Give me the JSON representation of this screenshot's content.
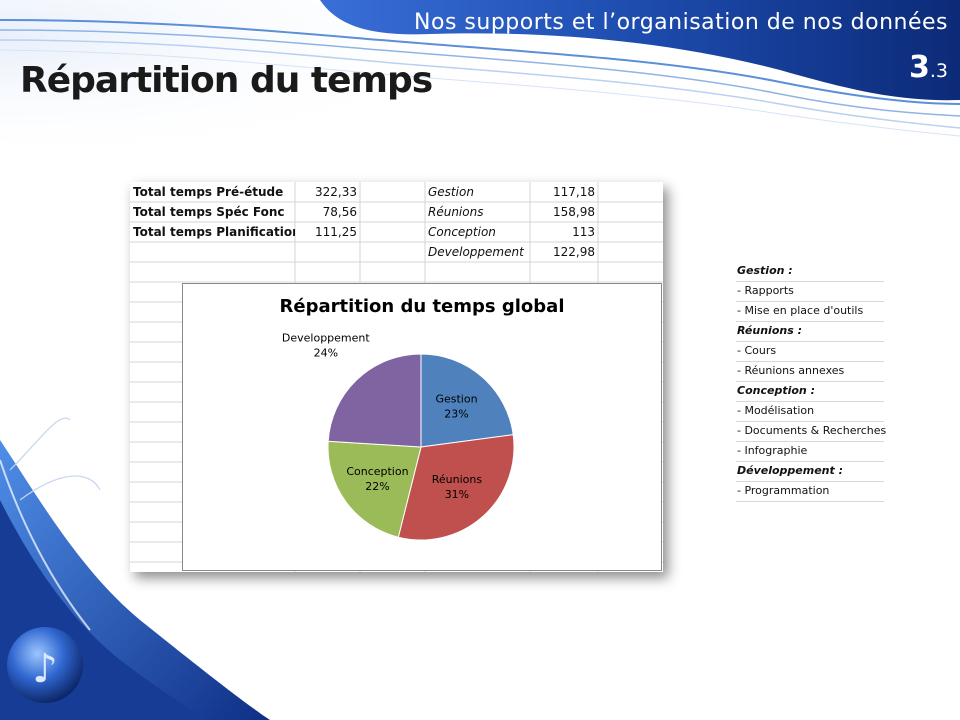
{
  "slide": {
    "header": "Nos supports et l’organisation de nos données",
    "number_main": "3",
    "number_sub": ".3",
    "title": "Répartition du temps"
  },
  "spreadsheet": {
    "rows": [
      {
        "label": "Total temps Pré-étude",
        "value": "322,33",
        "cat": "Gestion",
        "cat_value": "117,18"
      },
      {
        "label": "Total temps Spéc Fonc",
        "value": "78,56",
        "cat": "Réunions",
        "cat_value": "158,98"
      },
      {
        "label": "Total temps Planification",
        "value": "111,25",
        "cat": "Conception",
        "cat_value": "113"
      },
      {
        "label": "",
        "value": "",
        "cat": "Developpement",
        "cat_value": "122,98"
      }
    ]
  },
  "chart_data": {
    "type": "pie",
    "title": "Répartition du temps global",
    "categories": [
      "Gestion",
      "Réunions",
      "Conception",
      "Developpement"
    ],
    "values": [
      117.18,
      158.98,
      113,
      122.98
    ],
    "labels": [
      "23%",
      "31%",
      "22%",
      "24%"
    ],
    "colors": [
      "#4f81bd",
      "#c0504d",
      "#9bbb59",
      "#8064a2"
    ],
    "legend": "none",
    "data_labels": "category name and percentage"
  },
  "legend_panel": {
    "rows": [
      {
        "text": "Gestion :",
        "head": true
      },
      {
        "text": "- Rapports",
        "head": false
      },
      {
        "text": "- Mise en place d'outils",
        "head": false
      },
      {
        "text": "Réunions :",
        "head": true
      },
      {
        "text": "- Cours",
        "head": false
      },
      {
        "text": "- Réunions annexes",
        "head": false
      },
      {
        "text": "Conception :",
        "head": true
      },
      {
        "text": "- Modélisation",
        "head": false
      },
      {
        "text": "- Documents & Recherches",
        "head": false
      },
      {
        "text": "- Infographie",
        "head": false
      },
      {
        "text": "Développement :",
        "head": true
      },
      {
        "text": "- Programmation",
        "head": false
      }
    ]
  }
}
